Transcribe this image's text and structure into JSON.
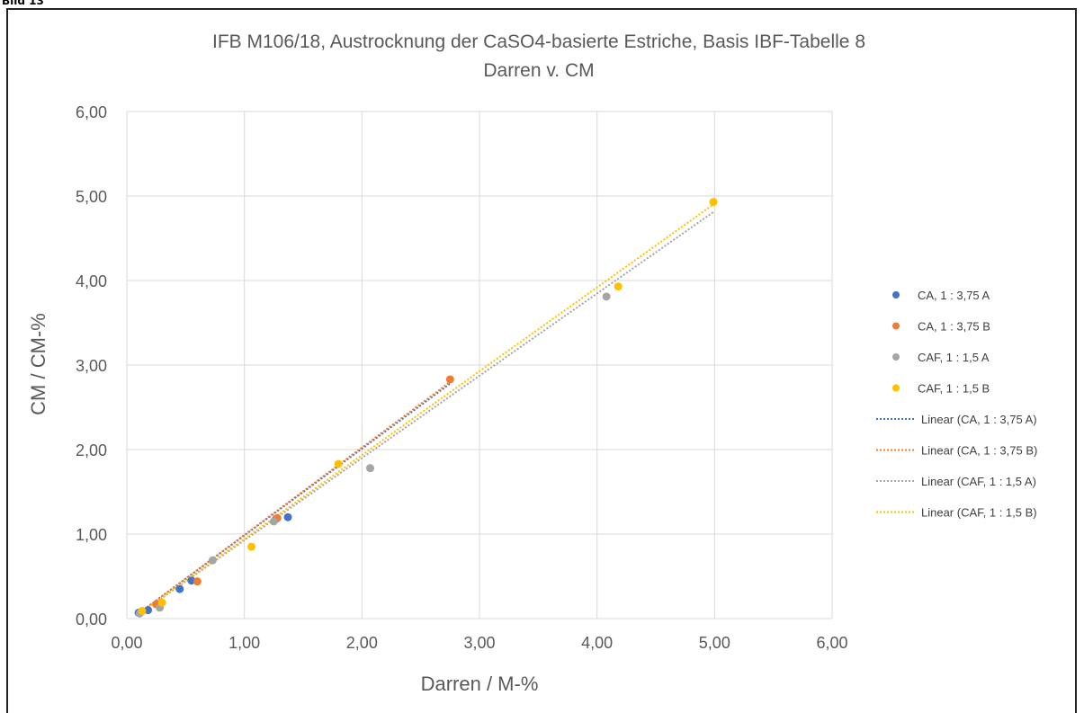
{
  "header_tag": "Bild 13",
  "chart_data": {
    "type": "scatter",
    "title": "IFB M106/18, Austrocknung der CaSO4-basierte Estriche, Basis IBF-Tabelle 8",
    "subtitle": "Darren v. CM",
    "xlabel": "Darren / M-%",
    "ylabel": "CM / CM-%",
    "xlim": [
      0,
      6
    ],
    "ylim": [
      0,
      6
    ],
    "x_ticks": [
      "0,00",
      "1,00",
      "2,00",
      "3,00",
      "4,00",
      "5,00",
      "6,00"
    ],
    "y_ticks": [
      "0,00",
      "1,00",
      "2,00",
      "3,00",
      "4,00",
      "5,00",
      "6,00"
    ],
    "grid": true,
    "legend_position": "right",
    "series": [
      {
        "name": "CA, 1 : 3,75 A",
        "color": "#4472C4",
        "points": [
          [
            0.1,
            0.07
          ],
          [
            0.18,
            0.1
          ],
          [
            0.45,
            0.35
          ],
          [
            0.55,
            0.45
          ],
          [
            1.27,
            1.18
          ],
          [
            1.37,
            1.2
          ]
        ]
      },
      {
        "name": "CA, 1 : 3,75 B",
        "color": "#ED7D31",
        "points": [
          [
            0.12,
            0.08
          ],
          [
            0.25,
            0.17
          ],
          [
            0.6,
            0.44
          ],
          [
            1.28,
            1.19
          ],
          [
            2.75,
            2.83
          ]
        ]
      },
      {
        "name": "CAF, 1 : 1,5 A",
        "color": "#A5A5A5",
        "points": [
          [
            0.11,
            0.06
          ],
          [
            0.28,
            0.13
          ],
          [
            0.73,
            0.69
          ],
          [
            1.25,
            1.15
          ],
          [
            2.07,
            1.78
          ],
          [
            4.08,
            3.81
          ]
        ]
      },
      {
        "name": "CAF, 1 : 1,5 B",
        "color": "#FFC000",
        "points": [
          [
            0.13,
            0.09
          ],
          [
            0.3,
            0.19
          ],
          [
            1.06,
            0.85
          ],
          [
            1.8,
            1.83
          ],
          [
            4.18,
            3.93
          ],
          [
            4.99,
            4.93
          ]
        ]
      }
    ],
    "trendlines": [
      {
        "name": "Linear (CA, 1 : 3,75 A)",
        "color": "#4472C4",
        "from": [
          0.1,
          0.06
        ],
        "to": [
          2.75,
          2.78
        ]
      },
      {
        "name": "Linear (CA, 1 : 3,75 B)",
        "color": "#ED7D31",
        "from": [
          0.12,
          0.08
        ],
        "to": [
          2.75,
          2.8
        ]
      },
      {
        "name": "Linear (CAF, 1 : 1,5 A)",
        "color": "#A5A5A5",
        "from": [
          0.11,
          0.06
        ],
        "to": [
          4.99,
          4.81
        ]
      },
      {
        "name": "Linear (CAF, 1 : 1,5 B)",
        "color": "#FFC000",
        "from": [
          0.13,
          0.08
        ],
        "to": [
          4.99,
          4.9
        ]
      }
    ]
  }
}
